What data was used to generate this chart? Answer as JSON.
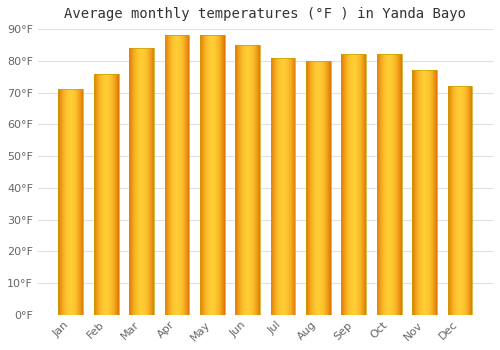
{
  "title": "Average monthly temperatures (°F ) in Yanda Bayo",
  "months": [
    "Jan",
    "Feb",
    "Mar",
    "Apr",
    "May",
    "Jun",
    "Jul",
    "Aug",
    "Sep",
    "Oct",
    "Nov",
    "Dec"
  ],
  "values": [
    71,
    76,
    84,
    88,
    88,
    85,
    81,
    80,
    82,
    82,
    77,
    72
  ],
  "ylim": [
    0,
    90
  ],
  "yticks": [
    0,
    10,
    20,
    30,
    40,
    50,
    60,
    70,
    80,
    90
  ],
  "ytick_labels": [
    "0°F",
    "10°F",
    "20°F",
    "30°F",
    "40°F",
    "50°F",
    "60°F",
    "70°F",
    "80°F",
    "90°F"
  ],
  "background_color": "#ffffff",
  "grid_color": "#e0e0e0",
  "bar_color_edge": "#E07800",
  "bar_color_center": "#FFCC44",
  "bar_outline": "#b8860b",
  "title_fontsize": 10,
  "tick_fontsize": 8,
  "bar_width": 0.7
}
